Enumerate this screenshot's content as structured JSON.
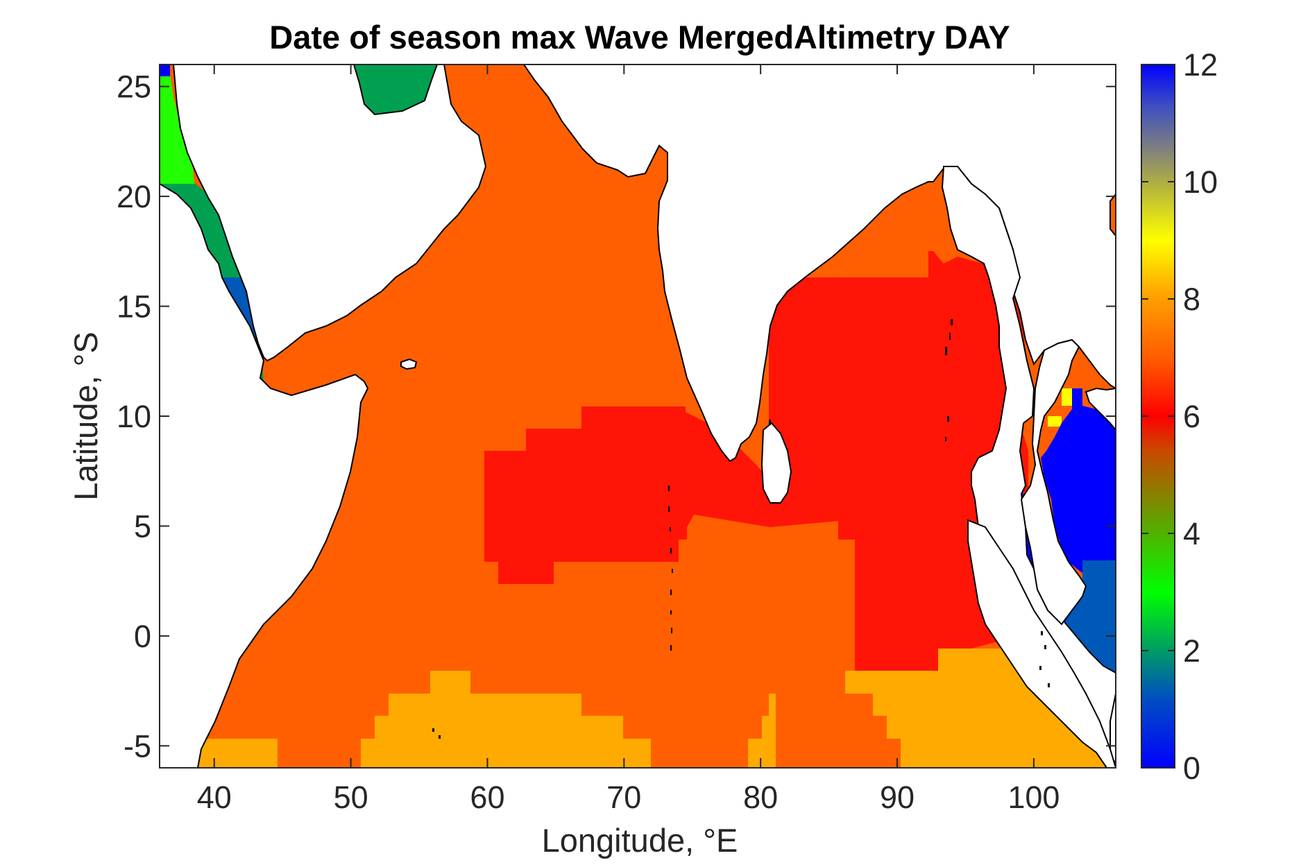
{
  "title": "Date of season max Wave MergedAltimetry DAY",
  "colors": {
    "land": "#ffffff",
    "ocean_base": "#ff5f00",
    "frame": "#262626",
    "coast": "#000000"
  },
  "chart_data": {
    "type": "heatmap",
    "title": "Date of season max Wave MergedAltimetry DAY",
    "xlabel": "Longitude, °E",
    "ylabel": "Latitude, °S",
    "xlim": [
      36,
      106
    ],
    "ylim": [
      -6,
      26
    ],
    "xticks": [
      40,
      50,
      60,
      70,
      80,
      90,
      100
    ],
    "xtick_labels": [
      "40",
      "50",
      "60",
      "70",
      "80",
      "90",
      "100"
    ],
    "yticks": [
      -5,
      0,
      5,
      10,
      15,
      20,
      25
    ],
    "ytick_labels": [
      "-5",
      "0",
      "5",
      "10",
      "15",
      "20",
      "25"
    ],
    "colorbar": {
      "range": [
        0,
        12
      ],
      "ticks": [
        0,
        2,
        4,
        6,
        8,
        10,
        12
      ],
      "tick_labels": [
        "0",
        "2",
        "4",
        "6",
        "8",
        "10",
        "12"
      ],
      "colormap": "jet-like (blue at 0, green near 3, red near 6, orange near 7-8, yellow near 9, grey near 10-11, blue at 12)"
    },
    "regions": [
      {
        "name": "Arabian Sea / western Indian Ocean",
        "value": 7
      },
      {
        "name": "central equatorial Indian Ocean",
        "value": 6
      },
      {
        "name": "Bay of Bengal",
        "value": 6
      },
      {
        "name": "northern Bay of Bengal coast",
        "value": 7
      },
      {
        "name": "southern band near 5°S",
        "value": 8
      },
      {
        "name": "Andaman coast near 100°E",
        "value": 7
      },
      {
        "name": "Gulf of Thailand and Malacca Strait",
        "value": 0
      },
      {
        "name": "southern Red Sea",
        "value": 1
      },
      {
        "name": "central Red Sea",
        "value": 2
      },
      {
        "name": "northern Red Sea",
        "value": 3
      },
      {
        "name": "Persian Gulf",
        "value": 2
      }
    ]
  }
}
